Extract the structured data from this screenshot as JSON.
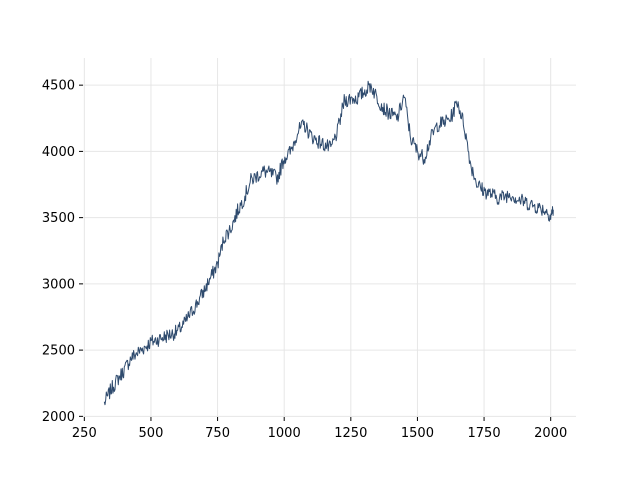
{
  "chart_data": {
    "type": "line",
    "title": "",
    "xlabel": "",
    "ylabel": "",
    "xlim": [
      245,
      2095
    ],
    "ylim": [
      1995,
      4705
    ],
    "grid": true,
    "x_ticks": [
      250,
      500,
      750,
      1000,
      1250,
      1500,
      1750,
      2000
    ],
    "y_ticks": [
      2000,
      2500,
      3000,
      3500,
      4000,
      4500
    ],
    "x_tick_labels": [
      "250",
      "500",
      "750",
      "1000",
      "1250",
      "1500",
      "1750",
      "2000"
    ],
    "y_tick_labels": [
      "2000",
      "2500",
      "3000",
      "3500",
      "4000",
      "4500"
    ],
    "series": [
      {
        "color": "#2f4b6e",
        "x": [
          325,
          350,
          375,
          400,
          425,
          450,
          475,
          500,
          525,
          550,
          575,
          600,
          625,
          650,
          675,
          700,
          725,
          750,
          775,
          800,
          825,
          850,
          875,
          900,
          925,
          950,
          975,
          1000,
          1025,
          1050,
          1075,
          1100,
          1125,
          1150,
          1175,
          1200,
          1225,
          1250,
          1275,
          1300,
          1325,
          1350,
          1375,
          1400,
          1425,
          1450,
          1475,
          1500,
          1525,
          1550,
          1575,
          1600,
          1625,
          1650,
          1675,
          1700,
          1725,
          1750,
          1775,
          1800,
          1825,
          1850,
          1875,
          1900,
          1925,
          1950,
          1975,
          2000,
          2010
        ],
        "y": [
          2100,
          2200,
          2280,
          2350,
          2440,
          2480,
          2520,
          2560,
          2580,
          2600,
          2620,
          2640,
          2700,
          2780,
          2860,
          2950,
          3050,
          3150,
          3350,
          3420,
          3550,
          3650,
          3780,
          3820,
          3850,
          3830,
          3800,
          3950,
          4000,
          4150,
          4200,
          4120,
          4080,
          4050,
          4020,
          4150,
          4380,
          4400,
          4400,
          4450,
          4500,
          4400,
          4320,
          4280,
          4250,
          4420,
          4100,
          4000,
          3950,
          4100,
          4200,
          4220,
          4250,
          4380,
          4200,
          3900,
          3750,
          3700,
          3680,
          3650,
          3660,
          3680,
          3640,
          3620,
          3600,
          3580,
          3560,
          3520,
          3560
        ]
      }
    ]
  }
}
